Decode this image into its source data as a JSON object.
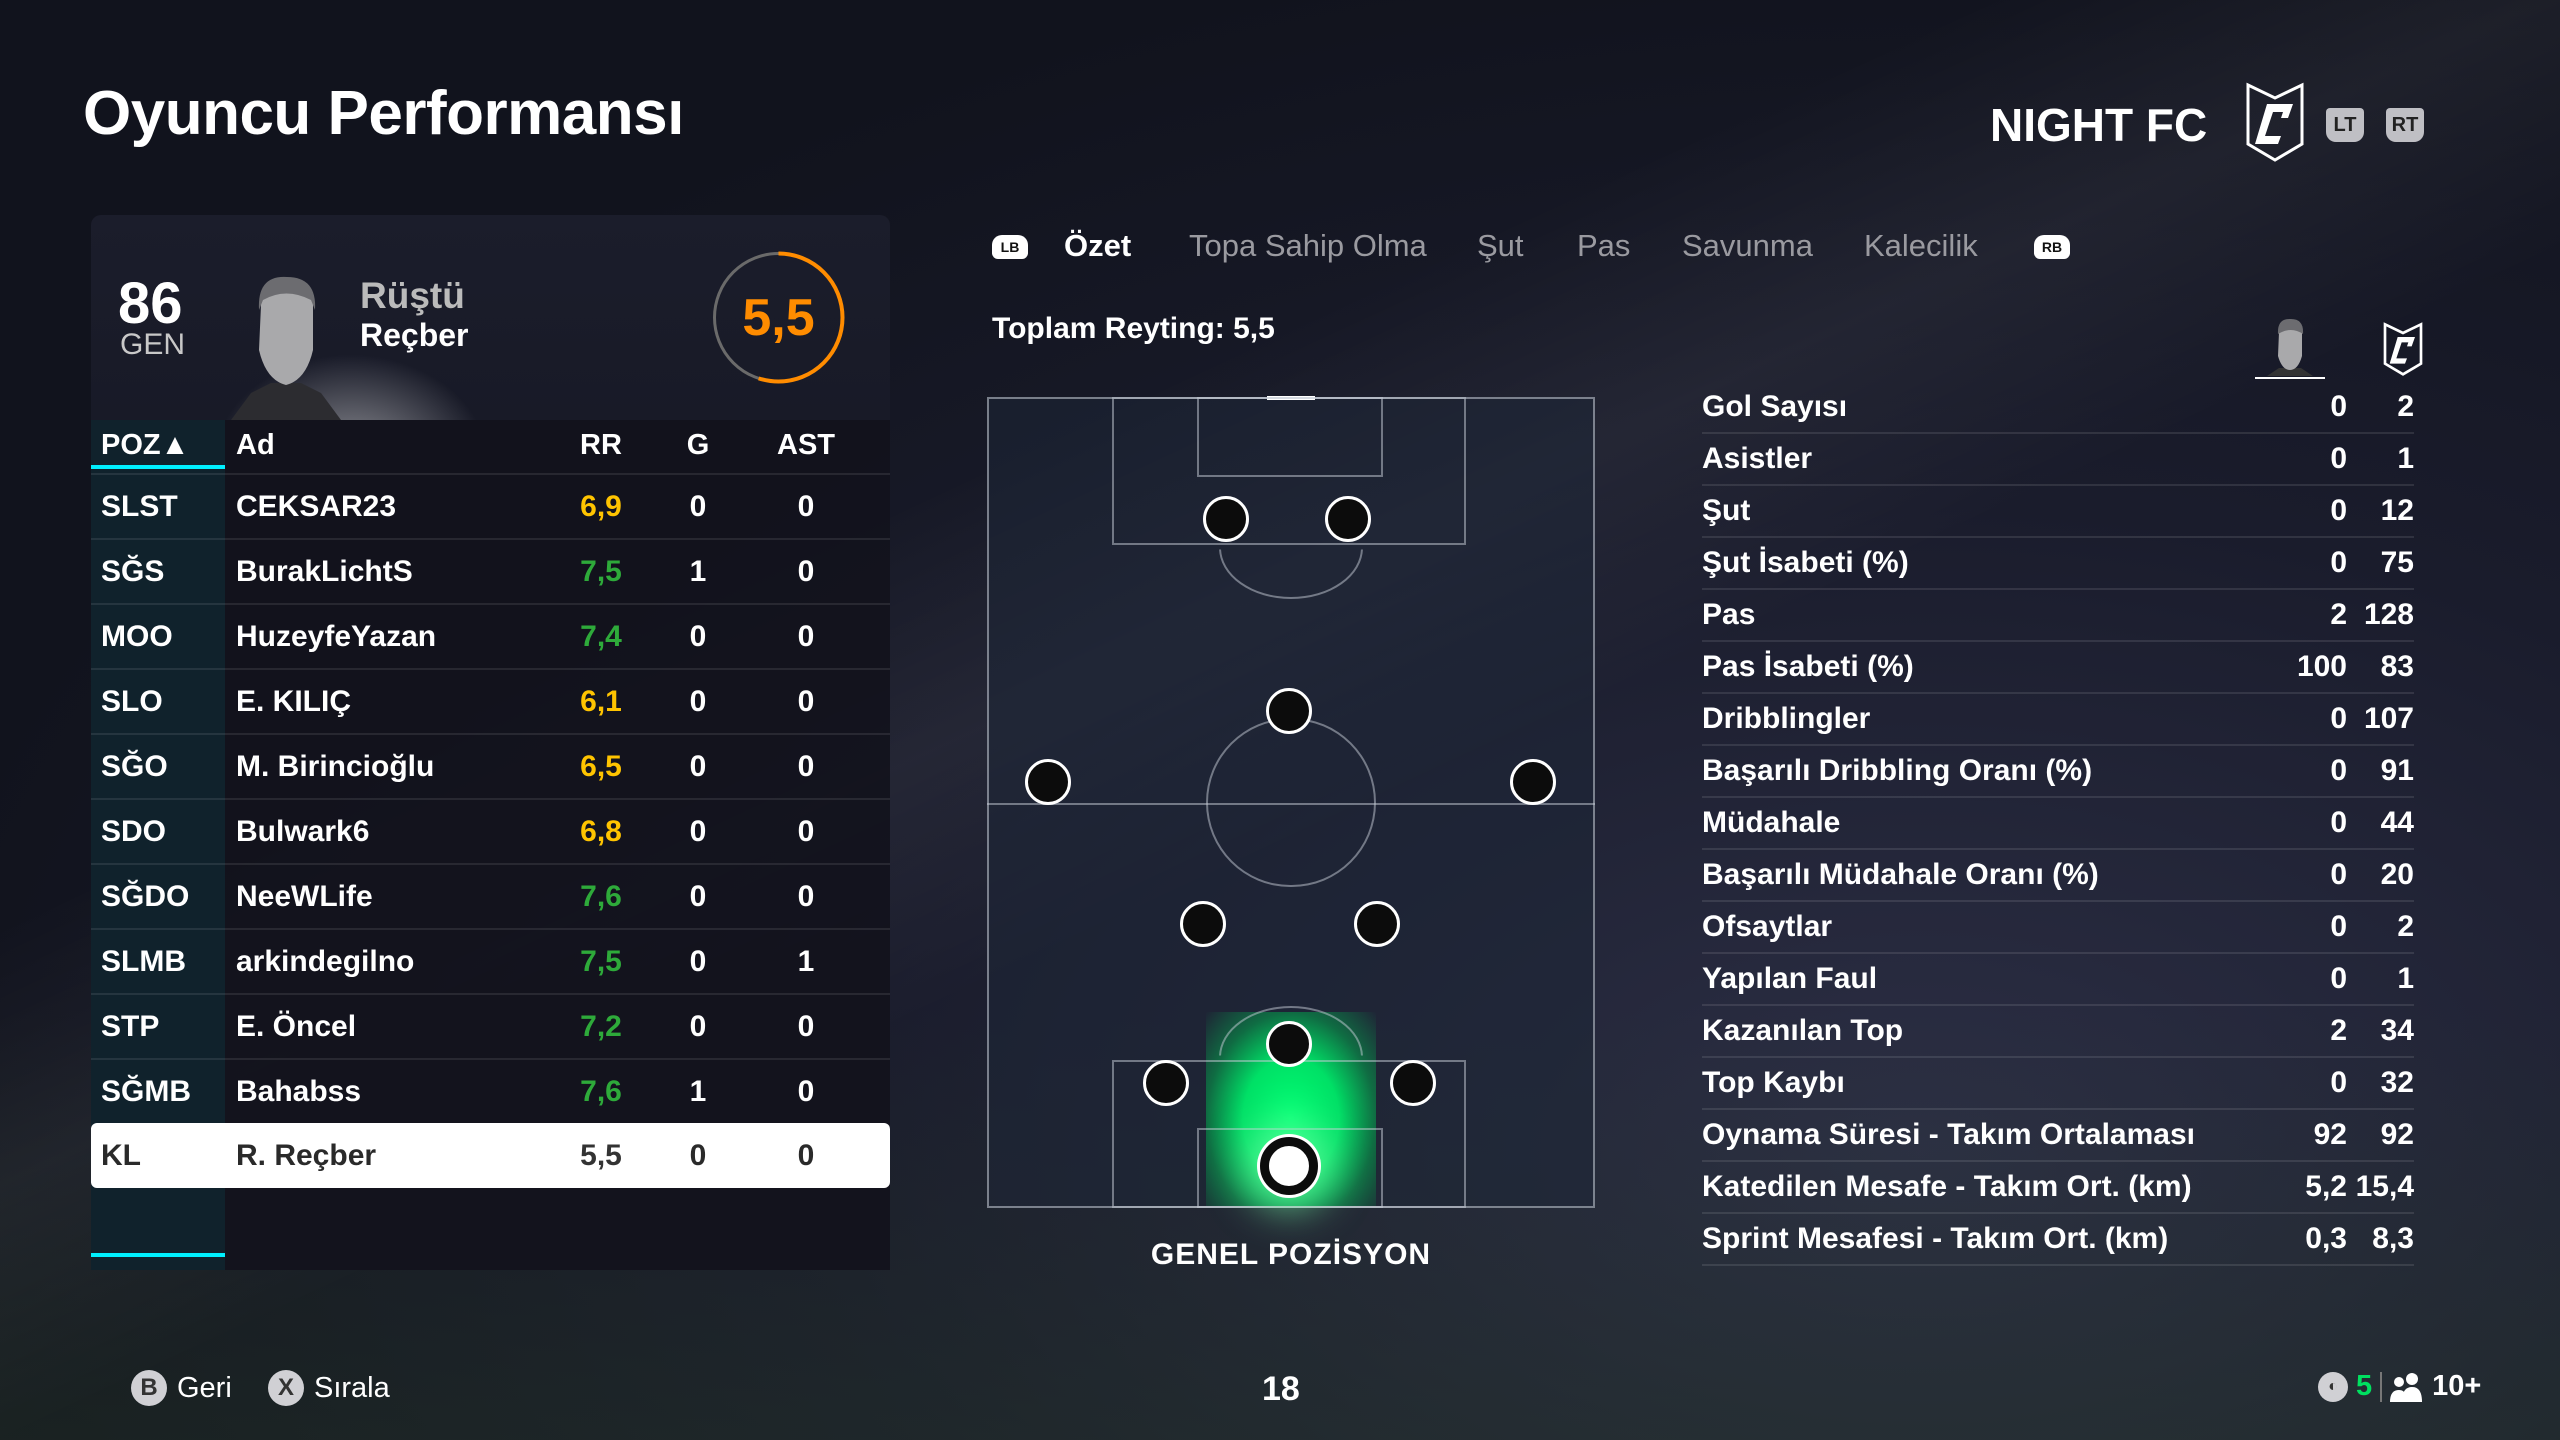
{
  "header": {
    "title": "Oyuncu Performansı",
    "club": "NIGHT FC",
    "lt": "LT",
    "rt": "RT"
  },
  "player": {
    "overall": "86",
    "overall_label": "GEN",
    "first_name": "Rüştü",
    "last_name": "Reçber",
    "rating": "5,5",
    "rating_fraction": 0.55,
    "rating_color": "#ff8c00"
  },
  "table": {
    "headers": {
      "pos": "POZ▲",
      "name": "Ad",
      "rr": "RR",
      "g": "G",
      "ast": "AST"
    },
    "rows": [
      {
        "pos": "SLST",
        "name": "CEKSAR23",
        "rr": "6,9",
        "g": "0",
        "ast": "0",
        "color": "#ffc400"
      },
      {
        "pos": "SĞS",
        "name": "BurakLichtS",
        "rr": "7,5",
        "g": "1",
        "ast": "0",
        "color": "#2eaa3a"
      },
      {
        "pos": "MOO",
        "name": "HuzeyfeYazan",
        "rr": "7,4",
        "g": "0",
        "ast": "0",
        "color": "#2eaa3a"
      },
      {
        "pos": "SLO",
        "name": "E. KILIÇ",
        "rr": "6,1",
        "g": "0",
        "ast": "0",
        "color": "#ffc400"
      },
      {
        "pos": "SĞO",
        "name": "M. Birincioğlu",
        "rr": "6,5",
        "g": "0",
        "ast": "0",
        "color": "#ffc400"
      },
      {
        "pos": "SDO",
        "name": "Bulwark6",
        "rr": "6,8",
        "g": "0",
        "ast": "0",
        "color": "#ffc400"
      },
      {
        "pos": "SĞDO",
        "name": "NeeWLife",
        "rr": "7,6",
        "g": "0",
        "ast": "0",
        "color": "#2eaa3a"
      },
      {
        "pos": "SLMB",
        "name": "arkindegilno",
        "rr": "7,5",
        "g": "0",
        "ast": "1",
        "color": "#2eaa3a"
      },
      {
        "pos": "STP",
        "name": "E. Öncel",
        "rr": "7,2",
        "g": "0",
        "ast": "0",
        "color": "#2eaa3a"
      },
      {
        "pos": "SĞMB",
        "name": "Bahabss",
        "rr": "7,6",
        "g": "1",
        "ast": "0",
        "color": "#2eaa3a"
      },
      {
        "pos": "KL",
        "name": "R. Reçber",
        "rr": "5,5",
        "g": "0",
        "ast": "0",
        "color": "#333333",
        "selected": true
      }
    ]
  },
  "tabs": {
    "lb": "LB",
    "rb": "RB",
    "items": [
      "Özet",
      "Topa Sahip Olma",
      "Şut",
      "Pas",
      "Savunma",
      "Kalecilik"
    ],
    "active": 0
  },
  "summary": {
    "total": "Toplam Reyting: 5,5",
    "pitch_label": "GENEL POZİSYON"
  },
  "stats": [
    {
      "label": "Gol Sayısı",
      "player": "0",
      "team": "2"
    },
    {
      "label": "Asistler",
      "player": "0",
      "team": "1"
    },
    {
      "label": "Şut",
      "player": "0",
      "team": "12"
    },
    {
      "label": "Şut İsabeti (%)",
      "player": "0",
      "team": "75"
    },
    {
      "label": "Pas",
      "player": "2",
      "team": "128"
    },
    {
      "label": "Pas İsabeti (%)",
      "player": "100",
      "team": "83"
    },
    {
      "label": "Dribblingler",
      "player": "0",
      "team": "107"
    },
    {
      "label": "Başarılı Dribbling Oranı (%)",
      "player": "0",
      "team": "91"
    },
    {
      "label": "Müdahale",
      "player": "0",
      "team": "44"
    },
    {
      "label": "Başarılı Müdahale Oranı (%)",
      "player": "0",
      "team": "20"
    },
    {
      "label": "Ofsaytlar",
      "player": "0",
      "team": "2"
    },
    {
      "label": "Yapılan Faul",
      "player": "0",
      "team": "1"
    },
    {
      "label": "Kazanılan Top",
      "player": "2",
      "team": "34"
    },
    {
      "label": "Top Kaybı",
      "player": "0",
      "team": "32"
    },
    {
      "label": "Oynama Süresi - Takım Ortalaması",
      "player": "92",
      "team": "92"
    },
    {
      "label": "Katedilen Mesafe - Takım Ort. (km)",
      "player": "5,2",
      "team": "15,4"
    },
    {
      "label": "Sprint Mesafesi - Takım Ort. (km)",
      "player": "0,3",
      "team": "8,3"
    }
  ],
  "footer": {
    "b": "B",
    "back": "Geri",
    "x": "X",
    "sort": "Sırala",
    "page": "18",
    "count": "5",
    "count_color": "#00e060",
    "players": "10+"
  }
}
